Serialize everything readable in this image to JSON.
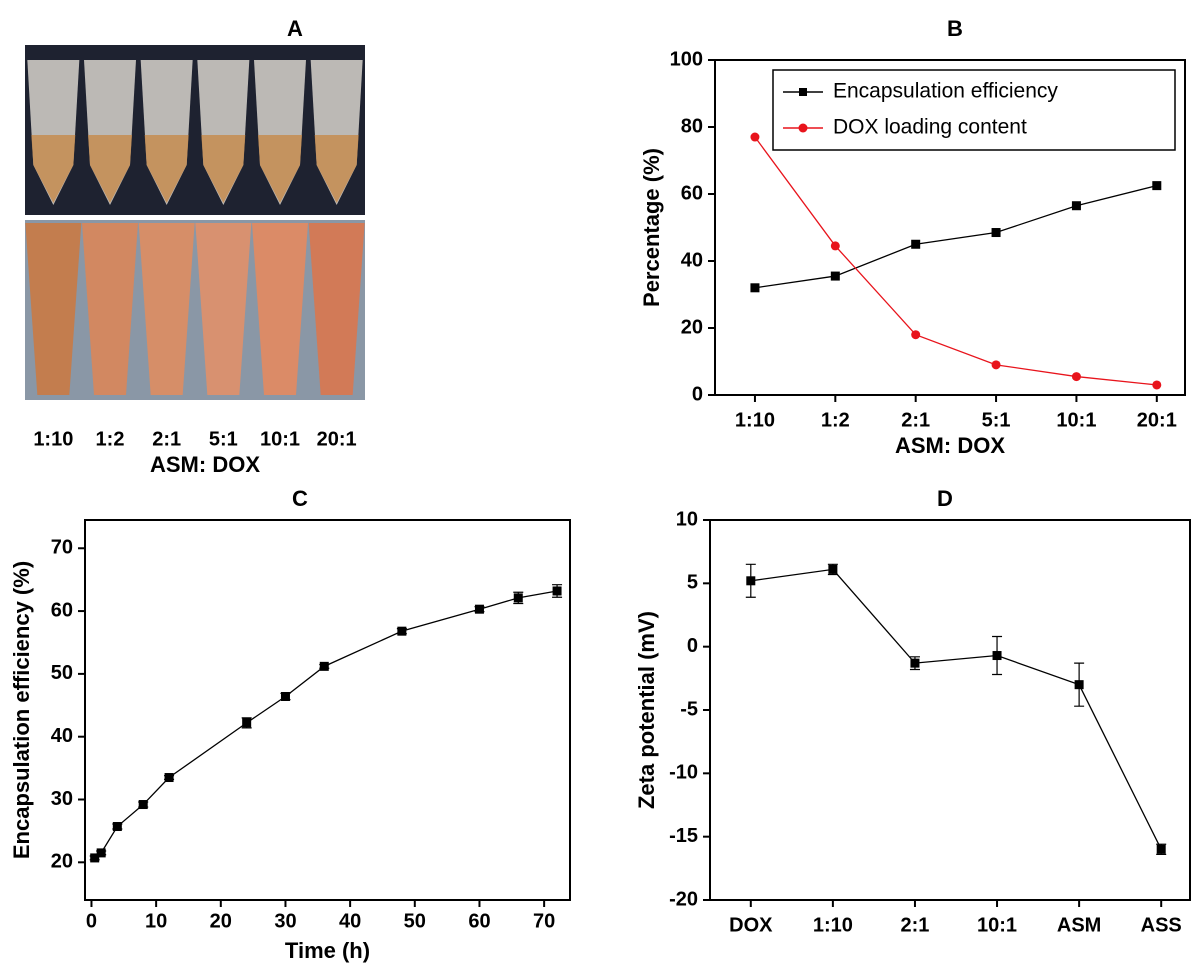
{
  "chart_data": [
    {
      "type": "photo",
      "title": "A",
      "categories": [
        "1:10",
        "1:2",
        "2:1",
        "5:1",
        "10:1",
        "20:1"
      ],
      "xlabel": "ASM: DOX"
    },
    {
      "type": "line",
      "title": "B",
      "categories": [
        "1:10",
        "1:2",
        "2:1",
        "5:1",
        "10:1",
        "20:1"
      ],
      "xlabel": "ASM: DOX",
      "ylabel": "Percentage (%)",
      "ylim": [
        0,
        100
      ],
      "yticks": [
        0,
        20,
        40,
        60,
        80,
        100
      ],
      "legend": "top-right",
      "series": [
        {
          "name": "Encapsulation efficiency",
          "color": "#000000",
          "marker": "square",
          "values": [
            32,
            35.5,
            45,
            48.5,
            56.5,
            62.5
          ]
        },
        {
          "name": "DOX loading content",
          "color": "#e8141c",
          "marker": "circle",
          "values": [
            77,
            44.5,
            18,
            9,
            5.5,
            3
          ]
        }
      ]
    },
    {
      "type": "line",
      "title": "C",
      "xlabel": "Time (h)",
      "ylabel": "Encapsulation efficiency (%)",
      "x": [
        0.5,
        1.5,
        4,
        8,
        12,
        24,
        30,
        36,
        48,
        60,
        66,
        72
      ],
      "xlim": [
        -1,
        74
      ],
      "xticks": [
        0,
        10,
        20,
        30,
        40,
        50,
        60,
        70
      ],
      "ylim": [
        14,
        74.5
      ],
      "yticks": [
        20,
        30,
        40,
        50,
        60,
        70
      ],
      "series": [
        {
          "color": "#000000",
          "marker": "square",
          "values": [
            20.7,
            21.5,
            25.7,
            29.2,
            33.5,
            42.2,
            46.4,
            51.2,
            56.8,
            60.3,
            62.1,
            63.2
          ],
          "errors": [
            0.3,
            0.3,
            0.4,
            0.4,
            0.3,
            0.8,
            0.5,
            0.3,
            0.4,
            0.4,
            0.9,
            1.0
          ]
        }
      ]
    },
    {
      "type": "line",
      "title": "D",
      "categories": [
        "DOX",
        "1:10",
        "2:1",
        "10:1",
        "ASM",
        "ASS"
      ],
      "ylabel": "Zeta potential (mV)",
      "ylim": [
        -20,
        10
      ],
      "yticks": [
        -20,
        -15,
        -10,
        -5,
        0,
        5,
        10
      ],
      "series": [
        {
          "color": "#000000",
          "marker": "square",
          "values": [
            5.2,
            6.1,
            -1.3,
            -0.7,
            -3,
            -16
          ],
          "errors": [
            1.3,
            0.4,
            0.5,
            1.5,
            1.7,
            0.4
          ]
        }
      ]
    }
  ]
}
